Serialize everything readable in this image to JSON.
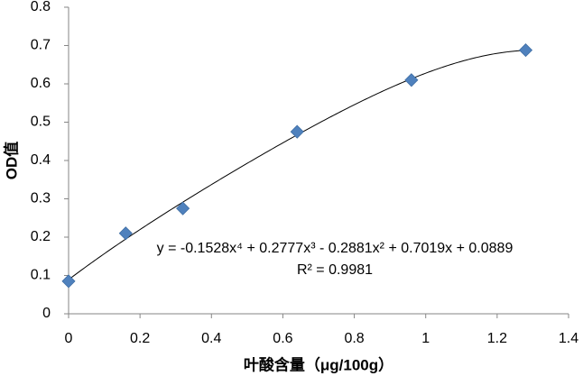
{
  "chart_data": {
    "type": "scatter",
    "x": [
      0,
      0.16,
      0.32,
      0.64,
      0.96,
      1.28
    ],
    "series": [
      {
        "color": "#4f81bd",
        "values": [
          0.085,
          0.21,
          0.275,
          0.475,
          0.61,
          0.688
        ]
      }
    ],
    "xlim": [
      0,
      1.4
    ],
    "xticks": [
      0,
      0.2,
      0.4,
      0.6,
      0.8,
      1,
      1.2,
      1.4
    ],
    "ylim": [
      0,
      0.8
    ],
    "yticks": [
      0,
      0.1,
      0.2,
      0.3,
      0.4,
      0.5,
      0.6,
      0.7,
      0.8
    ],
    "x_label": "叶酸含量（μg/100g）",
    "y_label": "OD值",
    "trendline": {
      "type": "polynomial",
      "order": 4,
      "color": "#000000"
    },
    "annotations": [
      "y = -0.1528x⁴ + 0.2777x³ - 0.2881x² + 0.7019x + 0.0889",
      "R² = 0.9981"
    ],
    "grid": false
  }
}
